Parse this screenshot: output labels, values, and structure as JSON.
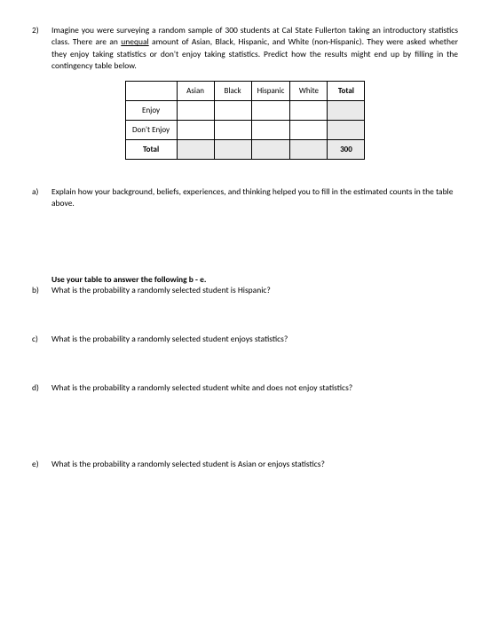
{
  "main": {
    "number": "2)",
    "text_parts": {
      "p1": "Imagine you were surveying a random sample of 300 students at Cal State Fullerton taking an introductory statistics class. There are an ",
      "underlined": "unequal",
      "p2": " amount of Asian, Black, Hispanic, and White (non-Hispanic). They were asked whether they enjoy taking statistics or don't enjoy taking statistics. Predict how the results might end up by filling in the contingency table below."
    }
  },
  "table": {
    "columns": {
      "c0": "",
      "c1": "Asian",
      "c2": "Black",
      "c3": "Hispanic",
      "c4": "White",
      "c5": "Total"
    },
    "rows": {
      "r1_label": "Enjoy",
      "r2_label": "Don't Enjoy",
      "r3_label": "Total",
      "r3_total": "300"
    },
    "colors": {
      "shaded_bg": "#eaeaea",
      "border": "#000000"
    },
    "font_size": 9
  },
  "sub": {
    "a": {
      "num": "a)",
      "text": "Explain how your background, beliefs, experiences, and thinking helped you to fill in the estimated counts in the table above."
    },
    "instruction": "Use your table to answer the following b - e.",
    "b": {
      "num": "b)",
      "text": "What is the probability a randomly selected student is Hispanic?"
    },
    "c": {
      "num": "c)",
      "text": "What is the probability a randomly selected student enjoys statistics?"
    },
    "d": {
      "num": "d)",
      "text": "What is the probability a randomly selected student white and does not enjoy statistics?"
    },
    "e": {
      "num": "e)",
      "text": "What is the probability a randomly selected student is Asian or enjoys statistics?"
    }
  }
}
